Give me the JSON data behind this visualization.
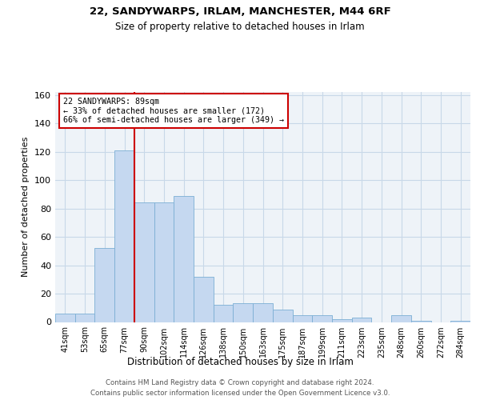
{
  "title1": "22, SANDYWARPS, IRLAM, MANCHESTER, M44 6RF",
  "title2": "Size of property relative to detached houses in Irlam",
  "xlabel": "Distribution of detached houses by size in Irlam",
  "ylabel": "Number of detached properties",
  "footer1": "Contains HM Land Registry data © Crown copyright and database right 2024.",
  "footer2": "Contains public sector information licensed under the Open Government Licence v3.0.",
  "bin_labels": [
    "41sqm",
    "53sqm",
    "65sqm",
    "77sqm",
    "90sqm",
    "102sqm",
    "114sqm",
    "126sqm",
    "138sqm",
    "150sqm",
    "163sqm",
    "175sqm",
    "187sqm",
    "199sqm",
    "211sqm",
    "223sqm",
    "235sqm",
    "248sqm",
    "260sqm",
    "272sqm",
    "284sqm"
  ],
  "bar_heights": [
    6,
    6,
    52,
    121,
    84,
    84,
    89,
    32,
    12,
    13,
    13,
    9,
    5,
    5,
    2,
    3,
    0,
    5,
    1,
    0,
    1
  ],
  "bar_color": "#c5d8f0",
  "bar_edge_color": "#7bafd4",
  "grid_color": "#c8d8e8",
  "background_color": "#eef3f8",
  "property_bin_index": 3,
  "red_line_color": "#cc0000",
  "annotation_box_color": "#cc0000",
  "annotation_line1": "22 SANDYWARPS: 89sqm",
  "annotation_line2": "← 33% of detached houses are smaller (172)",
  "annotation_line3": "66% of semi-detached houses are larger (349) →",
  "ylim": [
    0,
    162
  ],
  "yticks": [
    0,
    20,
    40,
    60,
    80,
    100,
    120,
    140,
    160
  ]
}
